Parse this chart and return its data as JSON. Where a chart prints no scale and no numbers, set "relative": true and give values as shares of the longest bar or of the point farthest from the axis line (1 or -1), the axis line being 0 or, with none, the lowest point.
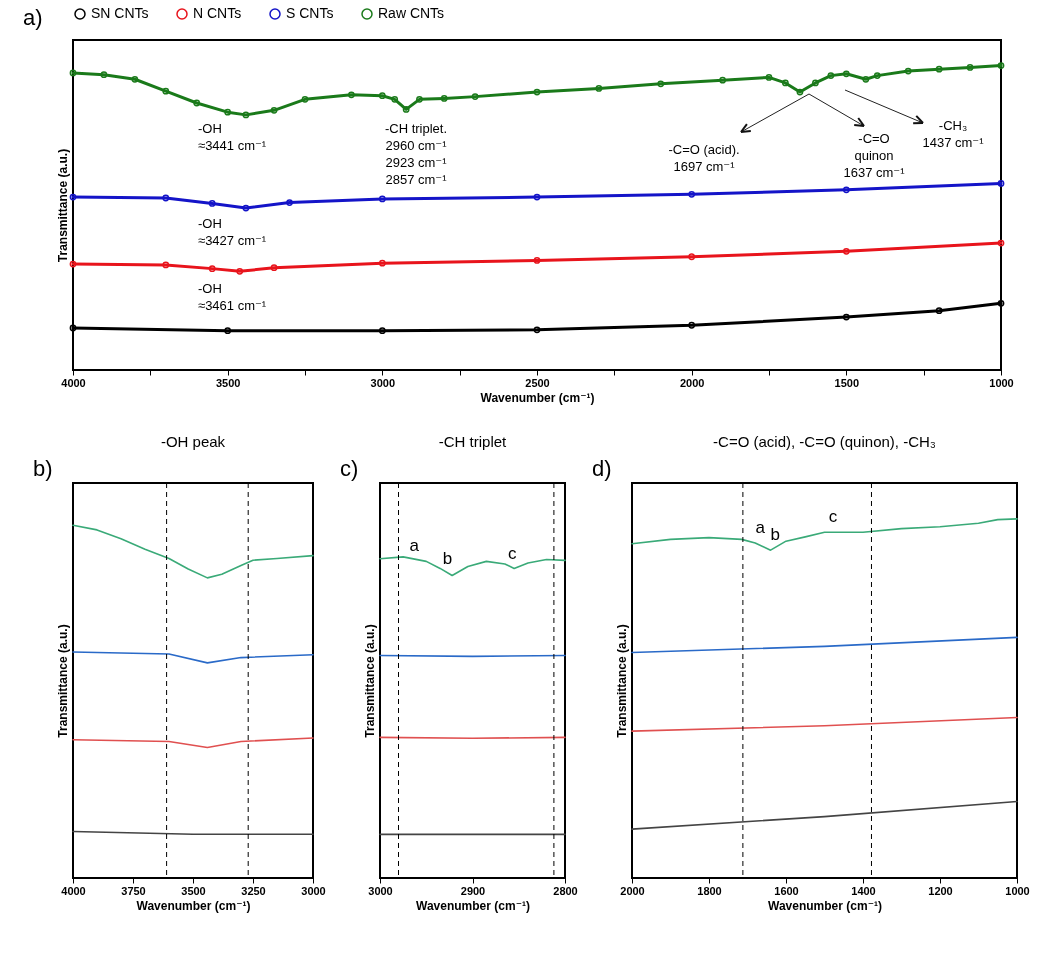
{
  "chart_data": [
    {
      "type": "line",
      "xlabel": "Wavenumber (cm⁻¹)",
      "ylabel": "Transmittance (a.u.)",
      "xlim": [
        4000,
        1000
      ],
      "xticks": [
        4000,
        {
          "value": 3750,
          "label": null
        },
        3500,
        {
          "value": 3250,
          "label": null
        },
        3000,
        {
          "value": 2750,
          "label": null
        },
        2500,
        {
          "value": 2250,
          "label": null
        },
        2000,
        {
          "value": 1750,
          "label": null
        },
        1500,
        {
          "value": 1250,
          "label": null
        },
        1000
      ],
      "relative": true,
      "tick_labels": "x",
      "marker": "circle",
      "line_style": "solid",
      "legend": "top",
      "series": [
        {
          "name": "SN CNTs",
          "color": "#000000",
          "x": [
            4000,
            3500,
            3000,
            2500,
            2000,
            1500,
            1200,
            1000
          ],
          "values": [
            0.138,
            0.129,
            0.129,
            0.132,
            0.147,
            0.174,
            0.195,
            0.219
          ]
        },
        {
          "name": "N CNTs",
          "color": "#e8141c",
          "x": [
            4000,
            3700,
            3550,
            3461,
            3350,
            3000,
            2500,
            2000,
            1500,
            1000
          ],
          "values": [
            0.348,
            0.345,
            0.333,
            0.324,
            0.336,
            0.351,
            0.36,
            0.372,
            0.39,
            0.417
          ]
        },
        {
          "name": "S CNTs",
          "color": "#1414c8",
          "x": [
            4000,
            3700,
            3550,
            3441,
            3300,
            3000,
            2500,
            2000,
            1500,
            1000
          ],
          "values": [
            0.568,
            0.565,
            0.547,
            0.532,
            0.55,
            0.562,
            0.568,
            0.577,
            0.592,
            0.613
          ]
        },
        {
          "name": "Raw CNTs",
          "color": "#1a7a1a",
          "x": [
            4000,
            3900,
            3800,
            3700,
            3600,
            3500,
            3441,
            3350,
            3250,
            3100,
            3000,
            2960,
            2923,
            2880,
            2800,
            2700,
            2500,
            2300,
            2100,
            1900,
            1750,
            1697,
            1650,
            1600,
            1550,
            1500,
            1437,
            1400,
            1300,
            1200,
            1100,
            1000
          ],
          "values": [
            0.976,
            0.97,
            0.955,
            0.916,
            0.877,
            0.847,
            0.838,
            0.853,
            0.889,
            0.904,
            0.901,
            0.889,
            0.856,
            0.889,
            0.892,
            0.898,
            0.913,
            0.925,
            0.94,
            0.952,
            0.961,
            0.943,
            0.913,
            0.943,
            0.967,
            0.973,
            0.955,
            0.967,
            0.982,
            0.988,
            0.994,
            1
          ]
        }
      ],
      "annotations": [
        "-OH\n≈3441 cm⁻¹",
        "-CH triplet.\n2960 cm⁻¹\n2923 cm⁻¹\n2857 cm⁻¹",
        "-C=O (acid).\n1697 cm⁻¹",
        "-C=O\nquinon\n1637 cm⁻¹",
        "-CH₃\n1437 cm⁻¹",
        "-OH\n≈3427 cm⁻¹",
        "-OH\n≈3461 cm⁻¹",
        "a)"
      ]
    },
    {
      "type": "line",
      "title": "-OH peak",
      "xlabel": "Wavenumber (cm⁻¹)",
      "ylabel": "Transmittance (a.u.)",
      "xlim": [
        4000,
        3000
      ],
      "xticks": [
        4000,
        3750,
        3500,
        3250,
        3000
      ],
      "relative": true,
      "tick_labels": "x",
      "ref_lines": [
        {
          "axis": "x",
          "value": 3610,
          "color": "#000000",
          "line_style": "dashed"
        },
        {
          "axis": "x",
          "value": 3270,
          "color": "#000000",
          "line_style": "dashed"
        }
      ],
      "series": [
        {
          "color": "#444444",
          "x": [
            4000,
            3500,
            3000
          ],
          "values": [
            0.132,
            0.124,
            0.124
          ]
        },
        {
          "color": "#e05050",
          "x": [
            4000,
            3600,
            3440,
            3300,
            3000
          ],
          "values": [
            0.392,
            0.387,
            0.37,
            0.387,
            0.397
          ]
        },
        {
          "color": "#2a6ac8",
          "x": [
            4000,
            3600,
            3440,
            3300,
            3000
          ],
          "values": [
            0.641,
            0.635,
            0.61,
            0.625,
            0.633
          ]
        },
        {
          "color": "#3aaa78",
          "x": [
            4000,
            3900,
            3800,
            3700,
            3600,
            3520,
            3440,
            3380,
            3300,
            3250,
            3150,
            3000
          ],
          "values": [
            1,
            0.987,
            0.962,
            0.932,
            0.906,
            0.876,
            0.851,
            0.861,
            0.886,
            0.901,
            0.906,
            0.914
          ]
        }
      ],
      "annotations": [
        "b)"
      ]
    },
    {
      "type": "line",
      "title": "-CH triplet",
      "xlabel": "Wavenumber (cm⁻¹)",
      "ylabel": "Transmittance (a.u.)",
      "xlim": [
        3000,
        2800
      ],
      "xticks": [
        3000,
        2900,
        2800
      ],
      "relative": true,
      "tick_labels": "x",
      "ref_lines": [
        {
          "axis": "x",
          "value": 2980,
          "color": "#000000",
          "line_style": "dashed"
        },
        {
          "axis": "x",
          "value": 2812,
          "color": "#000000",
          "line_style": "dashed"
        }
      ],
      "series": [
        {
          "color": "#444444",
          "x": [
            3000,
            2900,
            2800
          ],
          "values": [
            0.136,
            0.136,
            0.136
          ]
        },
        {
          "color": "#e05050",
          "x": [
            3000,
            2900,
            2800
          ],
          "values": [
            0.438,
            0.435,
            0.438
          ]
        },
        {
          "color": "#2a6ac8",
          "x": [
            3000,
            2900,
            2800
          ],
          "values": [
            0.693,
            0.69,
            0.693
          ]
        },
        {
          "color": "#3aaa78",
          "x": [
            3000,
            2975,
            2950,
            2935,
            2922,
            2905,
            2885,
            2865,
            2855,
            2840,
            2820,
            2800
          ],
          "values": [
            0.994,
            1,
            0.986,
            0.964,
            0.942,
            0.97,
            0.986,
            0.978,
            0.964,
            0.981,
            0.992,
            0.989
          ]
        }
      ],
      "annotations": [
        "c)",
        {
          "text": "a",
          "x": 2963,
          "y": 0.99
        },
        {
          "text": "b",
          "x": 2927,
          "y": 0.95
        },
        {
          "text": "c",
          "x": 2857,
          "y": 0.965
        }
      ]
    },
    {
      "type": "line",
      "title": "-C=O (acid), -C=O (quinon), -CH₃",
      "xlabel": "Wavenumber (cm⁻¹)",
      "ylabel": "Transmittance (a.u.)",
      "xlim": [
        2000,
        1000
      ],
      "xticks": [
        2000,
        1800,
        1600,
        1400,
        1200,
        1000
      ],
      "relative": true,
      "tick_labels": "x",
      "ref_lines": [
        {
          "axis": "x",
          "value": 1712,
          "color": "#000000",
          "line_style": "dashed"
        },
        {
          "axis": "x",
          "value": 1378,
          "color": "#000000",
          "line_style": "dashed"
        }
      ],
      "series": [
        {
          "color": "#444444",
          "x": [
            2000,
            1500,
            1000
          ],
          "values": [
            0.136,
            0.171,
            0.213
          ]
        },
        {
          "color": "#e05050",
          "x": [
            2000,
            1500,
            1000
          ],
          "values": [
            0.409,
            0.424,
            0.447
          ]
        },
        {
          "color": "#2a6ac8",
          "x": [
            2000,
            1500,
            1000
          ],
          "values": [
            0.628,
            0.645,
            0.67
          ]
        },
        {
          "color": "#3aaa78",
          "x": [
            2000,
            1900,
            1800,
            1715,
            1680,
            1640,
            1600,
            1550,
            1500,
            1400,
            1300,
            1200,
            1100,
            1050,
            1000
          ],
          "values": [
            0.931,
            0.943,
            0.948,
            0.943,
            0.933,
            0.913,
            0.938,
            0.95,
            0.963,
            0.963,
            0.973,
            0.978,
            0.988,
            0.998,
            1
          ]
        }
      ],
      "annotations": [
        "d)",
        {
          "text": "a",
          "x": 1667,
          "y": 0.935
        },
        {
          "text": "b",
          "x": 1628,
          "y": 0.915
        },
        {
          "text": "c",
          "x": 1478,
          "y": 0.965
        }
      ]
    }
  ]
}
